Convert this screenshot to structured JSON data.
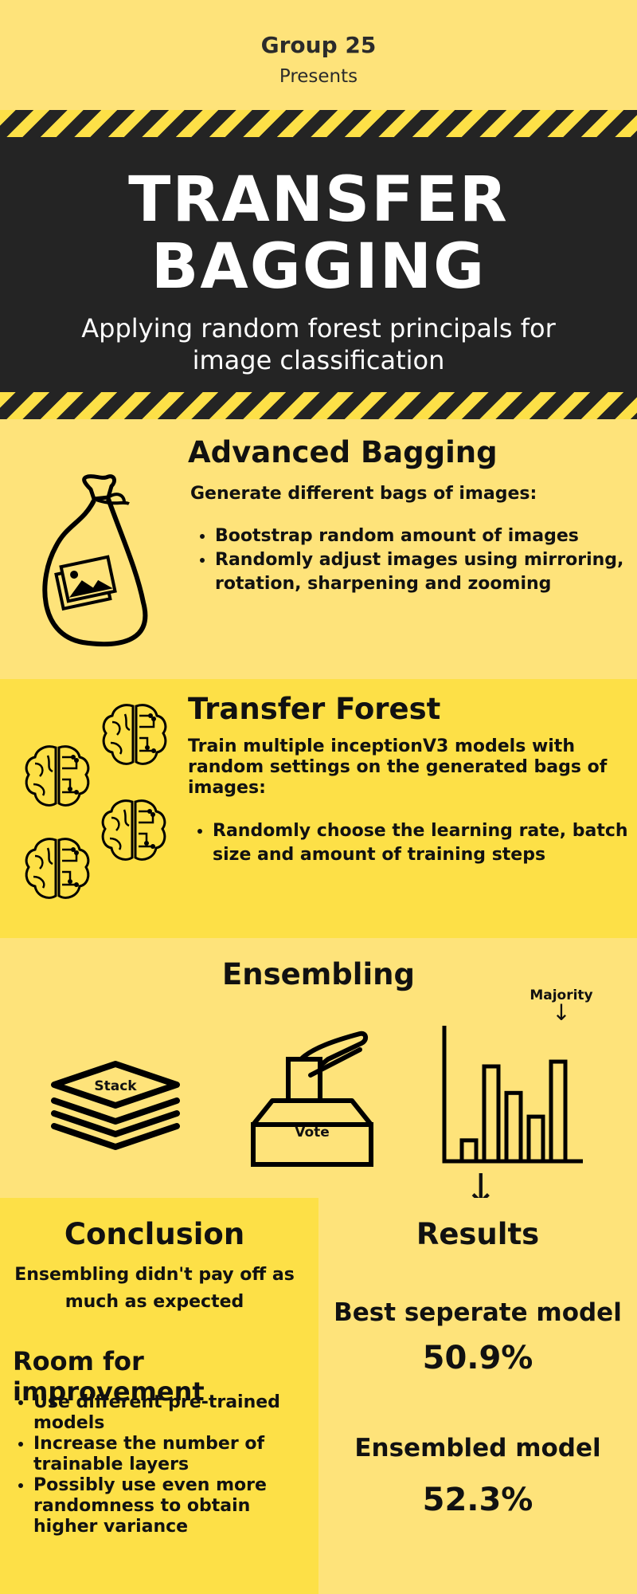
{
  "header": {
    "group": "Group 25",
    "presents": "Presents",
    "title_line1": "TRANSFER",
    "title_line2": "BAGGING",
    "subtitle": "Applying random forest principals for image classification"
  },
  "advanced_bagging": {
    "title": "Advanced Bagging",
    "intro": "Generate different bags of images:",
    "bullets": [
      "Bootstrap random amount of images",
      "Randomly adjust images using mirroring, rotation, sharpening and zooming"
    ],
    "icon": "bag-of-images-icon"
  },
  "transfer_forest": {
    "title": "Transfer Forest",
    "intro": "Train multiple inceptionV3 models  with random settings on the generated bags of images:",
    "bullets": [
      "Randomly choose the learning rate, batch size and amount of training steps"
    ],
    "icon": "brain-circuit-icon"
  },
  "ensembling": {
    "title": "Ensembling",
    "stack_label": "Stack",
    "vote_label": "Vote",
    "majority_label": "Majority",
    "bar_levels": [
      0.22,
      1.0,
      0.72,
      0.47,
      1.05
    ]
  },
  "conclusion": {
    "title": "Conclusion",
    "text": "Ensembling didn't pay off as much as expected",
    "improvement_title": "Room for improvement",
    "bullets": [
      "Use different pre-trained models",
      "Increase the number of trainable layers",
      "Possibly use even more randomness to obtain higher variance"
    ]
  },
  "results": {
    "title": "Results",
    "best_label": "Best seperate model",
    "best_value": "50.9%",
    "ensembled_label": "Ensembled model",
    "ensembled_value": "52.3%"
  },
  "colors": {
    "light_yellow": "#fee37a",
    "mid_yellow": "#fde047",
    "dark": "#242424"
  }
}
